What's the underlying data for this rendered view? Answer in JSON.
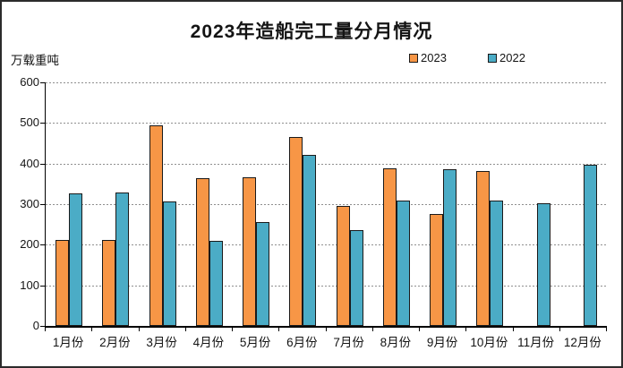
{
  "chart": {
    "title": "2023年造船完工量分月情况",
    "unit_label": "万载重吨"
  },
  "chart_data": {
    "type": "bar",
    "title": "2023年造船完工量分月情况",
    "ylabel": "万载重吨",
    "categories": [
      "1月份",
      "2月份",
      "3月份",
      "4月份",
      "5月份",
      "6月份",
      "7月份",
      "8月份",
      "9月份",
      "10月份",
      "11月份",
      "12月份"
    ],
    "series": [
      {
        "name": "2023",
        "color": "#F79646",
        "values": [
          211,
          211,
          495,
          363,
          367,
          465,
          296,
          389,
          276,
          382,
          null,
          null
        ]
      },
      {
        "name": "2022",
        "color": "#4BACC6",
        "values": [
          326,
          328,
          307,
          210,
          256,
          421,
          236,
          309,
          386,
          308,
          303,
          396
        ]
      }
    ],
    "ylim": [
      0,
      600
    ],
    "yticks": [
      0,
      100,
      200,
      300,
      400,
      500,
      600
    ],
    "grid": "dashed-horizontal",
    "legend_position": "top-right",
    "border_color": "#1a1a1a",
    "gridline_color": "#8f8f8f"
  }
}
